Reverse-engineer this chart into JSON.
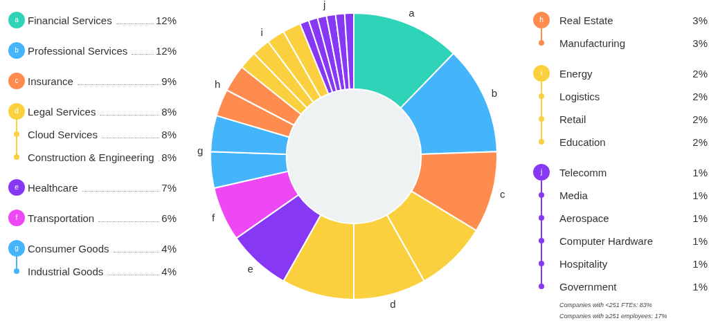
{
  "chart_data": {
    "type": "donut",
    "categories": [
      "Financial Services",
      "Professional Services",
      "Insurance",
      "Legal Services",
      "Cloud Services",
      "Construction & Engineering",
      "Healthcare",
      "Transportation",
      "Consumer Goods",
      "Industrial Goods",
      "Real Estate",
      "Manufacturing",
      "Energy",
      "Logistics",
      "Retail",
      "Education",
      "Telecomm",
      "Media",
      "Aerospace",
      "Computer Hardware",
      "Hospitality",
      "Government"
    ],
    "values": [
      12,
      12,
      9,
      8,
      8,
      8,
      7,
      6,
      4,
      4,
      3,
      3,
      2,
      2,
      2,
      2,
      1,
      1,
      1,
      1,
      1,
      1
    ],
    "value_labels": [
      "12%",
      "12%",
      "9%",
      "8%",
      "8%",
      "8%",
      "7%",
      "6%",
      "4%",
      "4%",
      "3%",
      "3%",
      "2%",
      "2%",
      "2%",
      "2%",
      "1%",
      "1%",
      "1%",
      "1%",
      "1%",
      "1%"
    ],
    "colors": [
      "#2fd4b8",
      "#45b5fb",
      "#ff8c4f",
      "#fbd03f",
      "#fbd03f",
      "#fbd03f",
      "#8638f5",
      "#ee48f5",
      "#45b5fb",
      "#45b5fb",
      "#ff8c4f",
      "#ff8c4f",
      "#fbd03f",
      "#fbd03f",
      "#fbd03f",
      "#fbd03f",
      "#8638f5",
      "#8638f5",
      "#8638f5",
      "#8638f5",
      "#8638f5",
      "#8638f5"
    ],
    "legend": "left",
    "annotations": [
      {
        "text": "a",
        "x": "Financial Services"
      },
      {
        "text": "b",
        "x": "Professional Services"
      },
      {
        "text": "c",
        "x": "Insurance"
      },
      {
        "text": "d",
        "x": "Legal Services"
      },
      {
        "text": "e",
        "x": "Healthcare"
      },
      {
        "text": "f",
        "x": "Transportation"
      },
      {
        "text": "g",
        "x": "Consumer Goods"
      },
      {
        "text": "h",
        "x": "Real Estate"
      },
      {
        "text": "i",
        "x": "Energy"
      },
      {
        "text": "j",
        "x": "Telecomm"
      },
      "Companies with <251 FTEs: 83%",
      "Companies with ≥251 employees: 17%"
    ]
  }
}
